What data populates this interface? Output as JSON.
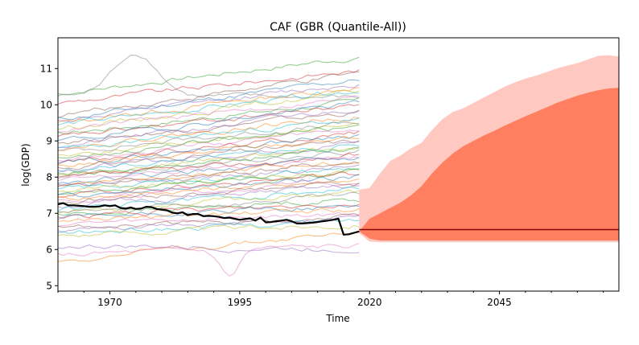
{
  "chart_data": {
    "type": "line",
    "title": "CAF (GBR (Quantile-All))",
    "xlabel": "Time",
    "ylabel": "log(GDP)",
    "xlim": [
      1960,
      2068
    ],
    "ylim": [
      4.85,
      11.85
    ],
    "x_ticks": [
      1970,
      1995,
      2020,
      2045
    ],
    "y_ticks": [
      5,
      6,
      7,
      8,
      9,
      10,
      11
    ],
    "grid": false,
    "colors": {
      "highlight": "#000000",
      "forecast_inner": "#ff7f60",
      "forecast_outer": "#ffc8c0",
      "forecast_median": "#8b0000"
    },
    "background_series_note_count": 60,
    "highlight_series": {
      "x": [
        1960,
        1961,
        1962,
        1963,
        1964,
        1965,
        1966,
        1967,
        1968,
        1969,
        1970,
        1971,
        1972,
        1973,
        1974,
        1975,
        1976,
        1977,
        1978,
        1979,
        1980,
        1981,
        1982,
        1983,
        1984,
        1985,
        1986,
        1987,
        1988,
        1989,
        1990,
        1991,
        1992,
        1993,
        1994,
        1995,
        1996,
        1997,
        1998,
        1999,
        2000,
        2001,
        2002,
        2003,
        2004,
        2005,
        2006,
        2007,
        2008,
        2009,
        2010,
        2011,
        2012,
        2013,
        2014,
        2015,
        2016,
        2017,
        2018
      ],
      "y": [
        7.25,
        7.28,
        7.22,
        7.22,
        7.21,
        7.2,
        7.18,
        7.18,
        7.19,
        7.22,
        7.2,
        7.22,
        7.15,
        7.13,
        7.16,
        7.12,
        7.13,
        7.18,
        7.17,
        7.12,
        7.1,
        7.08,
        7.02,
        7.0,
        7.03,
        6.95,
        6.98,
        6.98,
        6.92,
        6.93,
        6.92,
        6.9,
        6.87,
        6.88,
        6.85,
        6.82,
        6.84,
        6.86,
        6.8,
        6.88,
        6.75,
        6.76,
        6.78,
        6.8,
        6.82,
        6.78,
        6.72,
        6.72,
        6.73,
        6.74,
        6.76,
        6.78,
        6.8,
        6.82,
        6.85,
        6.41,
        6.42,
        6.46,
        6.5
      ]
    },
    "forecast": {
      "x": [
        2018,
        2020,
        2022,
        2024,
        2026,
        2028,
        2030,
        2032,
        2034,
        2036,
        2038,
        2040,
        2042,
        2044,
        2046,
        2048,
        2050,
        2052,
        2054,
        2056,
        2058,
        2060,
        2062,
        2064,
        2066,
        2068
      ],
      "outer_upper": [
        7.65,
        7.7,
        8.1,
        8.45,
        8.6,
        8.8,
        8.95,
        9.3,
        9.6,
        9.8,
        9.9,
        10.05,
        10.2,
        10.35,
        10.5,
        10.62,
        10.72,
        10.8,
        10.9,
        11.0,
        11.08,
        11.15,
        11.25,
        11.35,
        11.37,
        11.33
      ],
      "inner_upper": [
        6.5,
        6.85,
        7.0,
        7.15,
        7.3,
        7.5,
        7.75,
        8.1,
        8.4,
        8.65,
        8.85,
        9.0,
        9.15,
        9.28,
        9.42,
        9.55,
        9.68,
        9.8,
        9.92,
        10.05,
        10.15,
        10.25,
        10.33,
        10.4,
        10.45,
        10.47
      ],
      "median": [
        6.55,
        6.55,
        6.55,
        6.55,
        6.55,
        6.55,
        6.55,
        6.55,
        6.55,
        6.55,
        6.55,
        6.55,
        6.55,
        6.55,
        6.55,
        6.55,
        6.55,
        6.55,
        6.55,
        6.55,
        6.55,
        6.55,
        6.55,
        6.55,
        6.55,
        6.55
      ],
      "inner_lower": [
        6.5,
        6.3,
        6.25,
        6.25,
        6.25,
        6.25,
        6.25,
        6.25,
        6.25,
        6.25,
        6.25,
        6.25,
        6.25,
        6.25,
        6.25,
        6.25,
        6.25,
        6.25,
        6.25,
        6.25,
        6.25,
        6.25,
        6.25,
        6.25,
        6.25,
        6.25
      ],
      "outer_lower": [
        6.45,
        6.22,
        6.2,
        6.2,
        6.2,
        6.2,
        6.2,
        6.2,
        6.2,
        6.2,
        6.2,
        6.2,
        6.2,
        6.2,
        6.2,
        6.2,
        6.2,
        6.2,
        6.2,
        6.2,
        6.2,
        6.2,
        6.2,
        6.2,
        6.2,
        6.2
      ]
    },
    "background_series": [
      {
        "color": "#2ca02c",
        "start": 10.3,
        "end": 11.32
      },
      {
        "color": "#7f7f7f",
        "start": 10.25,
        "end": 10.2,
        "peak": 11.45
      },
      {
        "color": "#d62728",
        "start": 10.05,
        "end": 10.95
      },
      {
        "color": "#8c564b",
        "start": 9.7,
        "end": 10.85
      },
      {
        "color": "#1f77b4",
        "start": 9.6,
        "end": 10.7
      },
      {
        "color": "#9467bd",
        "start": 9.55,
        "end": 10.6
      },
      {
        "color": "#ff7f0e",
        "start": 9.5,
        "end": 10.5
      },
      {
        "color": "#17becf",
        "start": 9.45,
        "end": 10.4
      },
      {
        "color": "#bcbd22",
        "start": 9.35,
        "end": 10.35
      },
      {
        "color": "#e377c2",
        "start": 9.3,
        "end": 10.2
      },
      {
        "color": "#2ca02c",
        "start": 9.2,
        "end": 10.1
      },
      {
        "color": "#d62728",
        "start": 9.1,
        "end": 10.0
      },
      {
        "color": "#1f77b4",
        "start": 9.0,
        "end": 10.05
      },
      {
        "color": "#8c564b",
        "start": 8.95,
        "end": 9.8
      },
      {
        "color": "#9467bd",
        "start": 8.85,
        "end": 9.9
      },
      {
        "color": "#ff7f0e",
        "start": 8.8,
        "end": 9.7
      },
      {
        "color": "#17becf",
        "start": 8.75,
        "end": 9.6
      },
      {
        "color": "#7f7f7f",
        "start": 8.7,
        "end": 9.5
      },
      {
        "color": "#bcbd22",
        "start": 8.6,
        "end": 9.45
      },
      {
        "color": "#2ca02c",
        "start": 8.55,
        "end": 9.4
      },
      {
        "color": "#e377c2",
        "start": 8.5,
        "end": 9.3
      },
      {
        "color": "#d62728",
        "start": 8.4,
        "end": 9.25
      },
      {
        "color": "#1f77b4",
        "start": 8.35,
        "end": 9.2
      },
      {
        "color": "#ff7f0e",
        "start": 8.3,
        "end": 9.1
      },
      {
        "color": "#8c564b",
        "start": 8.25,
        "end": 9.0
      },
      {
        "color": "#9467bd",
        "start": 8.2,
        "end": 8.95
      },
      {
        "color": "#17becf",
        "start": 8.15,
        "end": 8.9
      },
      {
        "color": "#bcbd22",
        "start": 8.1,
        "end": 8.85
      },
      {
        "color": "#2ca02c",
        "start": 8.05,
        "end": 8.8
      },
      {
        "color": "#7f7f7f",
        "start": 8.0,
        "end": 8.7
      },
      {
        "color": "#d62728",
        "start": 7.95,
        "end": 8.6
      },
      {
        "color": "#e377c2",
        "start": 7.9,
        "end": 8.55
      },
      {
        "color": "#1f77b4",
        "start": 7.85,
        "end": 8.5
      },
      {
        "color": "#ff7f0e",
        "start": 7.8,
        "end": 8.45
      },
      {
        "color": "#8c564b",
        "start": 7.75,
        "end": 8.4
      },
      {
        "color": "#9467bd",
        "start": 7.7,
        "end": 8.3
      },
      {
        "color": "#17becf",
        "start": 7.65,
        "end": 8.25
      },
      {
        "color": "#bcbd22",
        "start": 7.6,
        "end": 8.2
      },
      {
        "color": "#2ca02c",
        "start": 7.55,
        "end": 8.15
      },
      {
        "color": "#d62728",
        "start": 7.5,
        "end": 8.1
      },
      {
        "color": "#1f77b4",
        "start": 7.45,
        "end": 8.0
      },
      {
        "color": "#ff7f0e",
        "start": 7.4,
        "end": 7.95
      },
      {
        "color": "#e377c2",
        "start": 7.35,
        "end": 7.9
      },
      {
        "color": "#8c564b",
        "start": 7.3,
        "end": 7.85
      },
      {
        "color": "#9467bd",
        "start": 7.2,
        "end": 7.75
      },
      {
        "color": "#17becf",
        "start": 7.1,
        "end": 7.7
      },
      {
        "color": "#bcbd22",
        "start": 7.05,
        "end": 7.6
      },
      {
        "color": "#7f7f7f",
        "start": 7.0,
        "end": 7.5
      },
      {
        "color": "#2ca02c",
        "start": 6.95,
        "end": 7.4
      },
      {
        "color": "#d62728",
        "start": 6.9,
        "end": 7.3
      },
      {
        "color": "#1f77b4",
        "start": 6.85,
        "end": 7.2
      },
      {
        "color": "#ff7f0e",
        "start": 6.8,
        "end": 7.1
      },
      {
        "color": "#e377c2",
        "start": 6.7,
        "end": 7.0
      },
      {
        "color": "#8c564b",
        "start": 6.6,
        "end": 6.9
      },
      {
        "color": "#9467bd",
        "start": 6.5,
        "end": 6.85
      },
      {
        "color": "#17becf",
        "start": 6.45,
        "end": 6.8
      },
      {
        "color": "#bcbd22",
        "start": 6.4,
        "end": 6.7
      },
      {
        "color": "#ff7f0e",
        "start": 5.7,
        "end": 6.5
      },
      {
        "color": "#9467bd",
        "start": 6.1,
        "end": 6.0
      },
      {
        "color": "#e377c2",
        "start": 5.85,
        "end": 6.1,
        "dip": 5.25
      }
    ]
  }
}
